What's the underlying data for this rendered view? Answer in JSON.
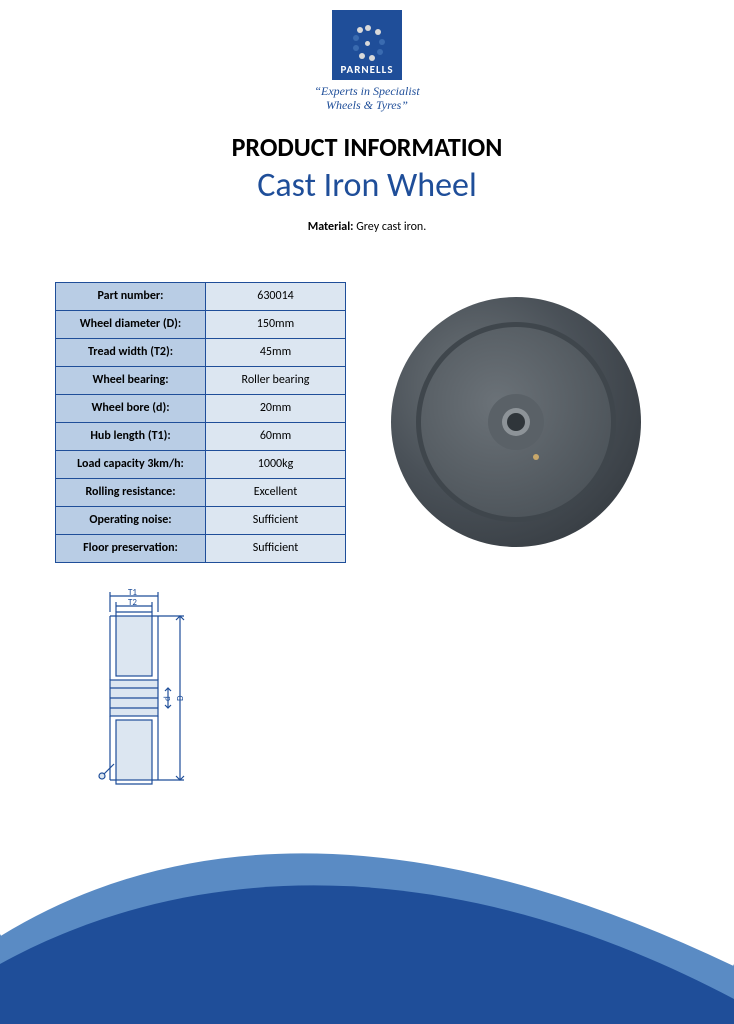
{
  "logo": {
    "brand": "PARNELLS",
    "tagline_line1": "“Experts in Specialist",
    "tagline_line2": "Wheels & Tyres”",
    "bg_color": "#1f4e99",
    "dot_dark": "#3a6bb0",
    "dot_light": "#d9d9d9"
  },
  "heading": {
    "title": "PRODUCT INFORMATION",
    "subtitle": "Cast Iron Wheel",
    "title_color": "#000000",
    "subtitle_color": "#1f4e99",
    "title_fontsize": 26,
    "subtitle_fontsize": 34
  },
  "material": {
    "label": "Material:",
    "value": "Grey cast iron."
  },
  "spec_table": {
    "header_bg": "#b9cde5",
    "value_bg": "#dce6f1",
    "border_color": "#1f4e99",
    "fontsize": 12,
    "rows": [
      {
        "label": "Part number:",
        "value": "630014"
      },
      {
        "label": "Wheel diameter (D):",
        "value": "150mm"
      },
      {
        "label": "Tread width (T2):",
        "value": "45mm"
      },
      {
        "label": "Wheel bearing:",
        "value": "Roller bearing"
      },
      {
        "label": "Wheel bore (d):",
        "value": "20mm"
      },
      {
        "label": "Hub length (T1):",
        "value": "60mm"
      },
      {
        "label": "Load capacity 3km/h:",
        "value": "1000kg"
      },
      {
        "label": "Rolling resistance:",
        "value": "Excellent"
      },
      {
        "label": "Operating noise:",
        "value": "Sufficient"
      },
      {
        "label": "Floor preservation:",
        "value": "Sufficient"
      }
    ]
  },
  "wheel_image": {
    "outer_color": "#4a5158",
    "face_color": "#555c63",
    "hub_color": "#6b7278",
    "bore_color": "#9aa0a5",
    "highlight": "#7b8289"
  },
  "diagram": {
    "stroke": "#1f4e99",
    "fill": "#dce6f1",
    "labels": {
      "T1": "T1",
      "T2": "T2",
      "d": "d",
      "D": "D"
    }
  },
  "swoosh": {
    "light": "#5a8bc4",
    "dark": "#1f4e99"
  }
}
